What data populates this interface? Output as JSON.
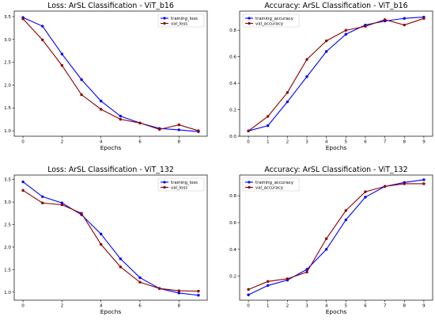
{
  "chart_data": [
    {
      "type": "line",
      "title": "Loss: ArSL Classification - ViT_b16",
      "xlabel": "Epochs",
      "ylabel": "",
      "x": [
        0,
        1,
        2,
        3,
        4,
        5,
        6,
        7,
        8,
        9
      ],
      "xlim": [
        -0.45,
        9.45
      ],
      "ylim": [
        0.88,
        3.62
      ],
      "xticks": [
        "0",
        "2",
        "4",
        "6",
        "8"
      ],
      "yticks": [
        "1.0",
        "1.5",
        "2.0",
        "2.5",
        "3.0",
        "3.5"
      ],
      "legend": "top-right",
      "grid": false,
      "series": [
        {
          "name": "training_loss",
          "color": "#0000ff",
          "values": [
            3.48,
            3.29,
            2.68,
            2.12,
            1.65,
            1.32,
            1.17,
            1.05,
            1.02,
            0.98
          ]
        },
        {
          "name": "val_loss",
          "color": "#8b0000",
          "values": [
            3.45,
            2.99,
            2.43,
            1.79,
            1.47,
            1.25,
            1.17,
            1.03,
            1.13,
            1.0
          ]
        }
      ]
    },
    {
      "type": "line",
      "title": "Accuracy: ArSL Classification - ViT_b16",
      "xlabel": "Epochs",
      "ylabel": "",
      "x": [
        0,
        1,
        2,
        3,
        4,
        5,
        6,
        7,
        8,
        9
      ],
      "xlim": [
        -0.45,
        9.45
      ],
      "ylim": [
        0.0,
        0.945
      ],
      "xticks": [
        "0",
        "1",
        "2",
        "3",
        "4",
        "5",
        "6",
        "7",
        "8",
        "9"
      ],
      "yticks": [
        "0.0",
        "0.2",
        "0.4",
        "0.6",
        "0.8"
      ],
      "legend": "top-left",
      "grid": false,
      "series": [
        {
          "name": "training_accuracy",
          "color": "#0000ff",
          "values": [
            0.04,
            0.08,
            0.26,
            0.45,
            0.64,
            0.77,
            0.84,
            0.87,
            0.89,
            0.9
          ]
        },
        {
          "name": "val_accuracy",
          "color": "#8b0000",
          "values": [
            0.04,
            0.15,
            0.33,
            0.58,
            0.72,
            0.8,
            0.83,
            0.88,
            0.84,
            0.89
          ]
        }
      ]
    },
    {
      "type": "line",
      "title": "Loss: ArSL Classification - ViT_132",
      "xlabel": "Epochs",
      "ylabel": "",
      "x": [
        0,
        1,
        2,
        3,
        4,
        5,
        6,
        7,
        8,
        9
      ],
      "xlim": [
        -0.45,
        9.45
      ],
      "ylim": [
        0.82,
        3.6
      ],
      "xticks": [
        "0",
        "2",
        "4",
        "6",
        "8"
      ],
      "yticks": [
        "1.0",
        "1.5",
        "2.0",
        "2.5",
        "3.0",
        "3.5"
      ],
      "legend": "top-right",
      "grid": false,
      "series": [
        {
          "name": "training_loss",
          "color": "#0000ff",
          "values": [
            3.45,
            3.12,
            2.98,
            2.72,
            2.29,
            1.74,
            1.32,
            1.08,
            0.98,
            0.93
          ]
        },
        {
          "name": "val_loss",
          "color": "#8b0000",
          "values": [
            3.26,
            2.98,
            2.94,
            2.75,
            2.06,
            1.56,
            1.22,
            1.08,
            1.03,
            1.02
          ]
        }
      ]
    },
    {
      "type": "line",
      "title": "Accuracy: ArSL Classification - ViT_132",
      "xlabel": "Epochs",
      "ylabel": "",
      "x": [
        0,
        1,
        2,
        3,
        4,
        5,
        6,
        7,
        8,
        9
      ],
      "xlim": [
        -0.45,
        9.45
      ],
      "ylim": [
        0.02,
        0.955
      ],
      "xticks": [
        "0",
        "1",
        "2",
        "3",
        "4",
        "5",
        "6",
        "7",
        "8",
        "9"
      ],
      "yticks": [
        "0.2",
        "0.4",
        "0.6",
        "0.8"
      ],
      "legend": "top-left",
      "grid": false,
      "series": [
        {
          "name": "training_accuracy",
          "color": "#0000ff",
          "values": [
            0.06,
            0.13,
            0.17,
            0.25,
            0.4,
            0.62,
            0.79,
            0.87,
            0.9,
            0.92
          ]
        },
        {
          "name": "val_accuracy",
          "color": "#8b0000",
          "values": [
            0.1,
            0.16,
            0.18,
            0.23,
            0.48,
            0.69,
            0.83,
            0.87,
            0.89,
            0.89
          ]
        }
      ]
    }
  ]
}
